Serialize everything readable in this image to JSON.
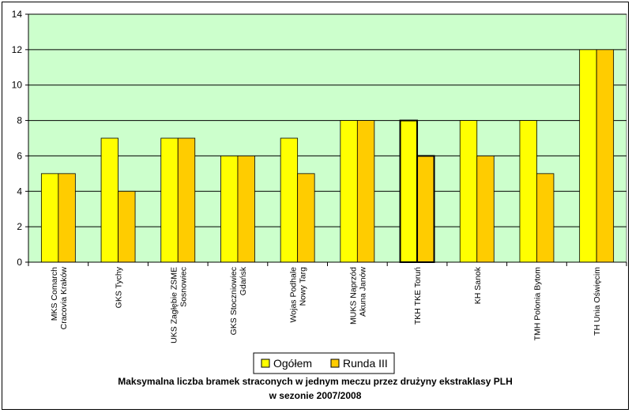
{
  "chart_data": {
    "type": "bar",
    "title": "Maksymalna liczba bramek straconych w jednym meczu przez drużyny ekstraklasy PLH",
    "subtitle": "w sezonie 2007/2008",
    "xlabel": "",
    "ylabel": "",
    "ylim": [
      0,
      14
    ],
    "yticks": [
      0,
      2,
      4,
      6,
      8,
      10,
      12,
      14
    ],
    "grid": true,
    "legend_position": "bottom",
    "plot_background": "#ccffcc",
    "categories": [
      "MKS Comarch\nCracovia Kraków",
      "GKS Tychy",
      "UKS Zagłębie ZSME\nSosnowiec",
      "GKS Stoczniowiec\nGdańsk",
      "Wojas Podhale\nNowy Targ",
      "MUKS Naprzód\nAkuna Janów",
      "TKH TKE Toruń",
      "KH Sanok",
      "TMH Polonia Bytom",
      "TH Unia Oświęcim"
    ],
    "series": [
      {
        "name": "Ogółem",
        "color": "#ffff00",
        "values": [
          5,
          7,
          7,
          6,
          7,
          8,
          8,
          8,
          8,
          12
        ]
      },
      {
        "name": "Runda III",
        "color": "#ffcc00",
        "values": [
          5,
          4,
          7,
          6,
          5,
          8,
          6,
          6,
          5,
          12
        ]
      }
    ],
    "highlighted_category_index": 6
  }
}
